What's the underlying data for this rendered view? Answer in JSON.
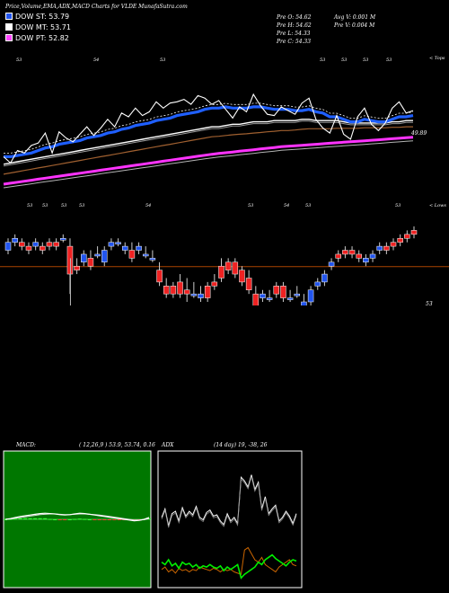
{
  "header": {
    "title": "Price,Volume,EMA,ADX,MACD Charts for VLDE MunafaSutra.com",
    "legend": [
      {
        "label": "DOW ST: 53.79",
        "color": "#2255ee"
      },
      {
        "label": "DOW MT: 53.71",
        "color": "#ffffff"
      },
      {
        "label": "DOW PT: 52.82",
        "color": "#ff44ff"
      }
    ],
    "stats_left": [
      "Pre  O: 54.62",
      "Pre  H: 54.62",
      "Pre  L: 54.33",
      "Pre  C: 54.33"
    ],
    "stats_right": [
      "Avg V: 0.001 M",
      "Pre  V: 0.004  M"
    ]
  },
  "top_chart": {
    "corner_label": "< Tops",
    "top_labels": [
      "53",
      "54",
      "53",
      "53",
      "53",
      "53",
      "53"
    ],
    "last_value_label": "49.89",
    "bottom_label": "< Lows"
  },
  "candle_chart": {
    "top_labels": [
      "53",
      "53",
      "53",
      "53",
      "54",
      "53",
      "54",
      "53",
      "53"
    ],
    "reference_label": "53"
  },
  "macd": {
    "title": "MACD:",
    "values": "( 12,26,9 ) 53.9, 53.74, 0.16"
  },
  "adx": {
    "title": "ADX",
    "values": "(14  day) 19,  -38,  26"
  },
  "chart_data": [
    {
      "type": "line",
      "name": "price-ema",
      "x": [
        1,
        2,
        3,
        4,
        5,
        6,
        7,
        8,
        9,
        10,
        11,
        12,
        13,
        14,
        15,
        16,
        17,
        18,
        19,
        20,
        21,
        22,
        23,
        24,
        25,
        26,
        27,
        28,
        29,
        30,
        31,
        32,
        33,
        34,
        35,
        36,
        37,
        38,
        39,
        40,
        41,
        42,
        43,
        44,
        45,
        46,
        47,
        48,
        49,
        50,
        51,
        52,
        53,
        54,
        55,
        56,
        57,
        58,
        59,
        60
      ],
      "series": [
        {
          "values": [
            53.0,
            52.75,
            53.25,
            53.15,
            53.45,
            53.55,
            53.95,
            53.15,
            54.0,
            53.75,
            53.6,
            53.9,
            54.2,
            53.85,
            54.15,
            54.5,
            54.2,
            54.75,
            54.6,
            54.95,
            54.65,
            54.8,
            55.2,
            54.95,
            55.15,
            55.2,
            55.3,
            55.1,
            55.45,
            55.35,
            55.1,
            55.25,
            54.9,
            54.55,
            55.0,
            54.8,
            55.5,
            55.05,
            54.7,
            54.65,
            55.0,
            54.85,
            54.7,
            55.15,
            55.35,
            54.5,
            54.15,
            53.95,
            54.65,
            53.9,
            53.7,
            54.6,
            54.95,
            54.3,
            54.05,
            54.35,
            54.95,
            55.2,
            54.75,
            54.85
          ]
        },
        {
          "values": [
            53.0,
            53.0,
            53.05,
            53.1,
            53.15,
            53.25,
            53.35,
            53.4,
            53.5,
            53.55,
            53.6,
            53.65,
            53.75,
            53.8,
            53.85,
            53.95,
            54.0,
            54.1,
            54.15,
            54.25,
            54.3,
            54.35,
            54.45,
            54.5,
            54.55,
            54.65,
            54.7,
            54.75,
            54.8,
            54.9,
            54.95,
            54.95,
            55.0,
            54.95,
            54.95,
            54.95,
            55.0,
            55.0,
            54.95,
            54.9,
            54.9,
            54.9,
            54.85,
            54.85,
            54.9,
            54.8,
            54.75,
            54.6,
            54.6,
            54.5,
            54.4,
            54.4,
            54.5,
            54.45,
            54.4,
            54.4,
            54.5,
            54.6,
            54.6,
            54.65
          ]
        },
        {
          "values": [
            52.7,
            52.75,
            52.8,
            52.85,
            52.9,
            52.95,
            53.0,
            53.05,
            53.1,
            53.15,
            53.2,
            53.25,
            53.3,
            53.35,
            53.4,
            53.45,
            53.5,
            53.55,
            53.6,
            53.65,
            53.7,
            53.75,
            53.8,
            53.85,
            53.9,
            53.95,
            54.0,
            54.05,
            54.1,
            54.15,
            54.2,
            54.2,
            54.25,
            54.3,
            54.3,
            54.35,
            54.4,
            54.4,
            54.4,
            54.45,
            54.45,
            54.45,
            54.45,
            54.5,
            54.5,
            54.45,
            54.45,
            54.45,
            54.45,
            54.4,
            54.35,
            54.35,
            54.35,
            54.35,
            54.35,
            54.35,
            54.4,
            54.4,
            54.45,
            54.45
          ]
        },
        {
          "values": [
            52.3,
            52.35,
            52.4,
            52.45,
            52.5,
            52.55,
            52.6,
            52.65,
            52.7,
            52.75,
            52.8,
            52.85,
            52.9,
            52.95,
            53.0,
            53.05,
            53.1,
            53.15,
            53.2,
            53.25,
            53.3,
            53.35,
            53.4,
            53.45,
            53.5,
            53.55,
            53.6,
            53.65,
            53.7,
            53.75,
            53.8,
            53.82,
            53.85,
            53.88,
            53.9,
            53.92,
            53.95,
            53.97,
            54.0,
            54.02,
            54.05,
            54.05,
            54.07,
            54.1,
            54.12,
            54.12,
            54.12,
            54.12,
            54.14,
            54.14,
            54.14,
            54.14,
            54.16,
            54.16,
            54.16,
            54.16,
            54.18,
            54.18,
            54.2,
            54.2
          ]
        },
        {
          "values": [
            51.9,
            51.94,
            51.98,
            52.02,
            52.06,
            52.1,
            52.14,
            52.18,
            52.22,
            52.26,
            52.3,
            52.34,
            52.38,
            52.42,
            52.46,
            52.5,
            52.54,
            52.58,
            52.62,
            52.66,
            52.7,
            52.74,
            52.78,
            52.82,
            52.86,
            52.9,
            52.94,
            52.98,
            53.02,
            53.06,
            53.1,
            53.13,
            53.16,
            53.19,
            53.22,
            53.25,
            53.28,
            53.31,
            53.34,
            53.37,
            53.4,
            53.42,
            53.44,
            53.46,
            53.48,
            53.5,
            53.52,
            53.54,
            53.56,
            53.58,
            53.6,
            53.62,
            53.64,
            53.66,
            53.68,
            53.7,
            53.72,
            53.74,
            53.76,
            53.78
          ]
        }
      ]
    },
    {
      "type": "candlestick",
      "name": "daily-candles",
      "x": [
        1,
        2,
        3,
        4,
        5,
        6,
        7,
        8,
        9,
        10,
        11,
        12,
        13,
        14,
        15,
        16,
        17,
        18,
        19,
        20,
        21,
        22,
        23,
        24,
        25,
        26,
        27,
        28,
        29,
        30,
        31,
        32,
        33,
        34,
        35,
        36,
        37,
        38,
        39,
        40,
        41,
        42,
        43,
        44,
        45,
        46,
        47,
        48,
        49,
        50,
        51,
        52,
        53,
        54,
        55,
        56,
        57,
        58,
        59,
        60
      ],
      "open": [
        53.6,
        53.8,
        53.8,
        53.7,
        53.7,
        53.7,
        53.8,
        53.8,
        53.9,
        53.7,
        53.2,
        53.3,
        53.4,
        53.5,
        53.3,
        53.7,
        53.8,
        53.6,
        53.6,
        53.6,
        53.5,
        53.4,
        53.1,
        52.7,
        52.7,
        52.8,
        52.6,
        52.5,
        52.4,
        52.7,
        52.8,
        53.2,
        53.3,
        53.3,
        53.1,
        52.9,
        52.5,
        52.4,
        52.4,
        52.7,
        52.7,
        52.4,
        52.5,
        52.2,
        52.3,
        52.7,
        52.8,
        53.2,
        53.5,
        53.6,
        53.6,
        53.5,
        53.3,
        53.4,
        53.6,
        53.7,
        53.8,
        53.9,
        54.0,
        54.1
      ],
      "close": [
        53.8,
        53.9,
        53.7,
        53.6,
        53.8,
        53.6,
        53.7,
        53.7,
        53.9,
        53.0,
        53.1,
        53.5,
        53.2,
        53.5,
        53.6,
        53.8,
        53.8,
        53.7,
        53.4,
        53.7,
        53.5,
        53.4,
        52.8,
        52.5,
        52.5,
        52.5,
        52.5,
        52.5,
        52.5,
        52.4,
        52.7,
        52.9,
        53.1,
        53.0,
        52.8,
        52.6,
        52.2,
        52.5,
        52.4,
        52.5,
        52.4,
        52.4,
        52.5,
        52.3,
        52.6,
        52.8,
        53.0,
        53.3,
        53.4,
        53.5,
        53.5,
        53.4,
        53.4,
        53.5,
        53.7,
        53.6,
        53.7,
        53.8,
        53.9,
        54.0
      ],
      "high": [
        53.9,
        54.0,
        53.9,
        53.8,
        53.9,
        53.8,
        53.9,
        53.9,
        54.0,
        53.9,
        53.4,
        53.6,
        53.6,
        53.7,
        53.7,
        53.9,
        53.9,
        53.8,
        53.8,
        53.8,
        53.7,
        53.6,
        53.3,
        52.9,
        52.8,
        53.0,
        52.9,
        52.8,
        52.7,
        52.8,
        53.0,
        53.4,
        53.4,
        53.4,
        53.2,
        53.1,
        52.7,
        52.6,
        52.6,
        52.8,
        52.8,
        52.6,
        52.7,
        52.5,
        52.7,
        52.9,
        53.1,
        53.4,
        53.6,
        53.7,
        53.7,
        53.6,
        53.5,
        53.6,
        53.8,
        53.8,
        53.9,
        54.0,
        54.1,
        54.2
      ],
      "low": [
        53.5,
        53.7,
        53.6,
        53.5,
        53.6,
        53.5,
        53.6,
        53.6,
        53.8,
        52.5,
        53.0,
        53.2,
        53.1,
        53.4,
        53.2,
        53.6,
        53.7,
        53.5,
        53.3,
        53.5,
        53.4,
        53.3,
        52.7,
        52.4,
        52.4,
        52.4,
        52.3,
        52.4,
        52.3,
        52.3,
        52.6,
        52.8,
        53.0,
        52.9,
        52.7,
        52.5,
        52.1,
        52.3,
        52.3,
        52.4,
        52.3,
        52.3,
        52.4,
        52.1,
        52.2,
        52.6,
        52.7,
        53.1,
        53.3,
        53.4,
        53.4,
        53.3,
        53.2,
        53.3,
        53.5,
        53.5,
        53.6,
        53.7,
        53.8,
        53.9
      ]
    },
    {
      "type": "area",
      "name": "macd",
      "x": [
        1,
        2,
        3,
        4,
        5,
        6,
        7,
        8,
        9,
        10,
        11,
        12,
        13,
        14,
        15,
        16,
        17,
        18,
        19,
        20,
        21,
        22,
        23,
        24,
        25,
        26,
        27,
        28,
        29,
        30
      ],
      "series": [
        {
          "values": [
            0.0,
            0.02,
            0.05,
            0.08,
            0.1,
            0.12,
            0.14,
            0.16,
            0.17,
            0.16,
            0.15,
            0.13,
            0.12,
            0.13,
            0.15,
            0.17,
            0.16,
            0.14,
            0.12,
            0.1,
            0.08,
            0.06,
            0.04,
            0.02,
            0.0,
            -0.02,
            -0.04,
            -0.03,
            0.0,
            0.05
          ]
        },
        {
          "values": [
            0.0,
            0.01,
            0.03,
            0.05,
            0.07,
            0.09,
            0.11,
            0.13,
            0.14,
            0.15,
            0.15,
            0.14,
            0.13,
            0.13,
            0.14,
            0.15,
            0.15,
            0.14,
            0.13,
            0.12,
            0.1,
            0.08,
            0.06,
            0.04,
            0.02,
            0.0,
            -0.02,
            -0.02,
            -0.01,
            0.02
          ]
        },
        {
          "values": [
            0.0,
            0.01,
            0.02,
            0.03,
            0.03,
            0.03,
            0.03,
            0.03,
            0.03,
            0.01,
            0.0,
            -0.01,
            -0.01,
            0.0,
            0.01,
            0.02,
            0.01,
            0.0,
            -0.01,
            -0.02,
            -0.02,
            -0.02,
            -0.02,
            -0.02,
            -0.02,
            -0.02,
            -0.02,
            -0.01,
            0.01,
            0.03
          ]
        }
      ]
    },
    {
      "type": "line",
      "name": "adx",
      "x": [
        1,
        2,
        3,
        4,
        5,
        6,
        7,
        8,
        9,
        10,
        11,
        12,
        13,
        14,
        15,
        16,
        17,
        18,
        19,
        20,
        21,
        22,
        23,
        24,
        25,
        26,
        27,
        28,
        29,
        30,
        31,
        32,
        33,
        34,
        35,
        36,
        37,
        38,
        39,
        40
      ],
      "series": [
        {
          "values": [
            55,
            62,
            48,
            58,
            60,
            52,
            63,
            56,
            60,
            57,
            64,
            55,
            53,
            59,
            61,
            56,
            57,
            52,
            49,
            58,
            52,
            55,
            50,
            88,
            85,
            80,
            90,
            78,
            84,
            62,
            72,
            58,
            62,
            65,
            52,
            55,
            60,
            56,
            50,
            58
          ]
        },
        {
          "values": [
            12,
            14,
            10,
            12,
            9,
            13,
            11,
            12,
            10,
            12,
            11,
            14,
            13,
            12,
            11,
            13,
            12,
            10,
            12,
            11,
            12,
            10,
            9,
            8,
            28,
            30,
            25,
            20,
            18,
            22,
            16,
            14,
            12,
            10,
            14,
            16,
            18,
            20,
            16,
            15
          ]
        },
        {
          "values": [
            18,
            16,
            20,
            15,
            17,
            13,
            18,
            16,
            17,
            14,
            16,
            13,
            15,
            14,
            16,
            14,
            13,
            15,
            11,
            14,
            12,
            14,
            16,
            5,
            8,
            10,
            12,
            14,
            18,
            16,
            20,
            22,
            24,
            21,
            19,
            17,
            15,
            18,
            20,
            19
          ]
        }
      ]
    }
  ]
}
